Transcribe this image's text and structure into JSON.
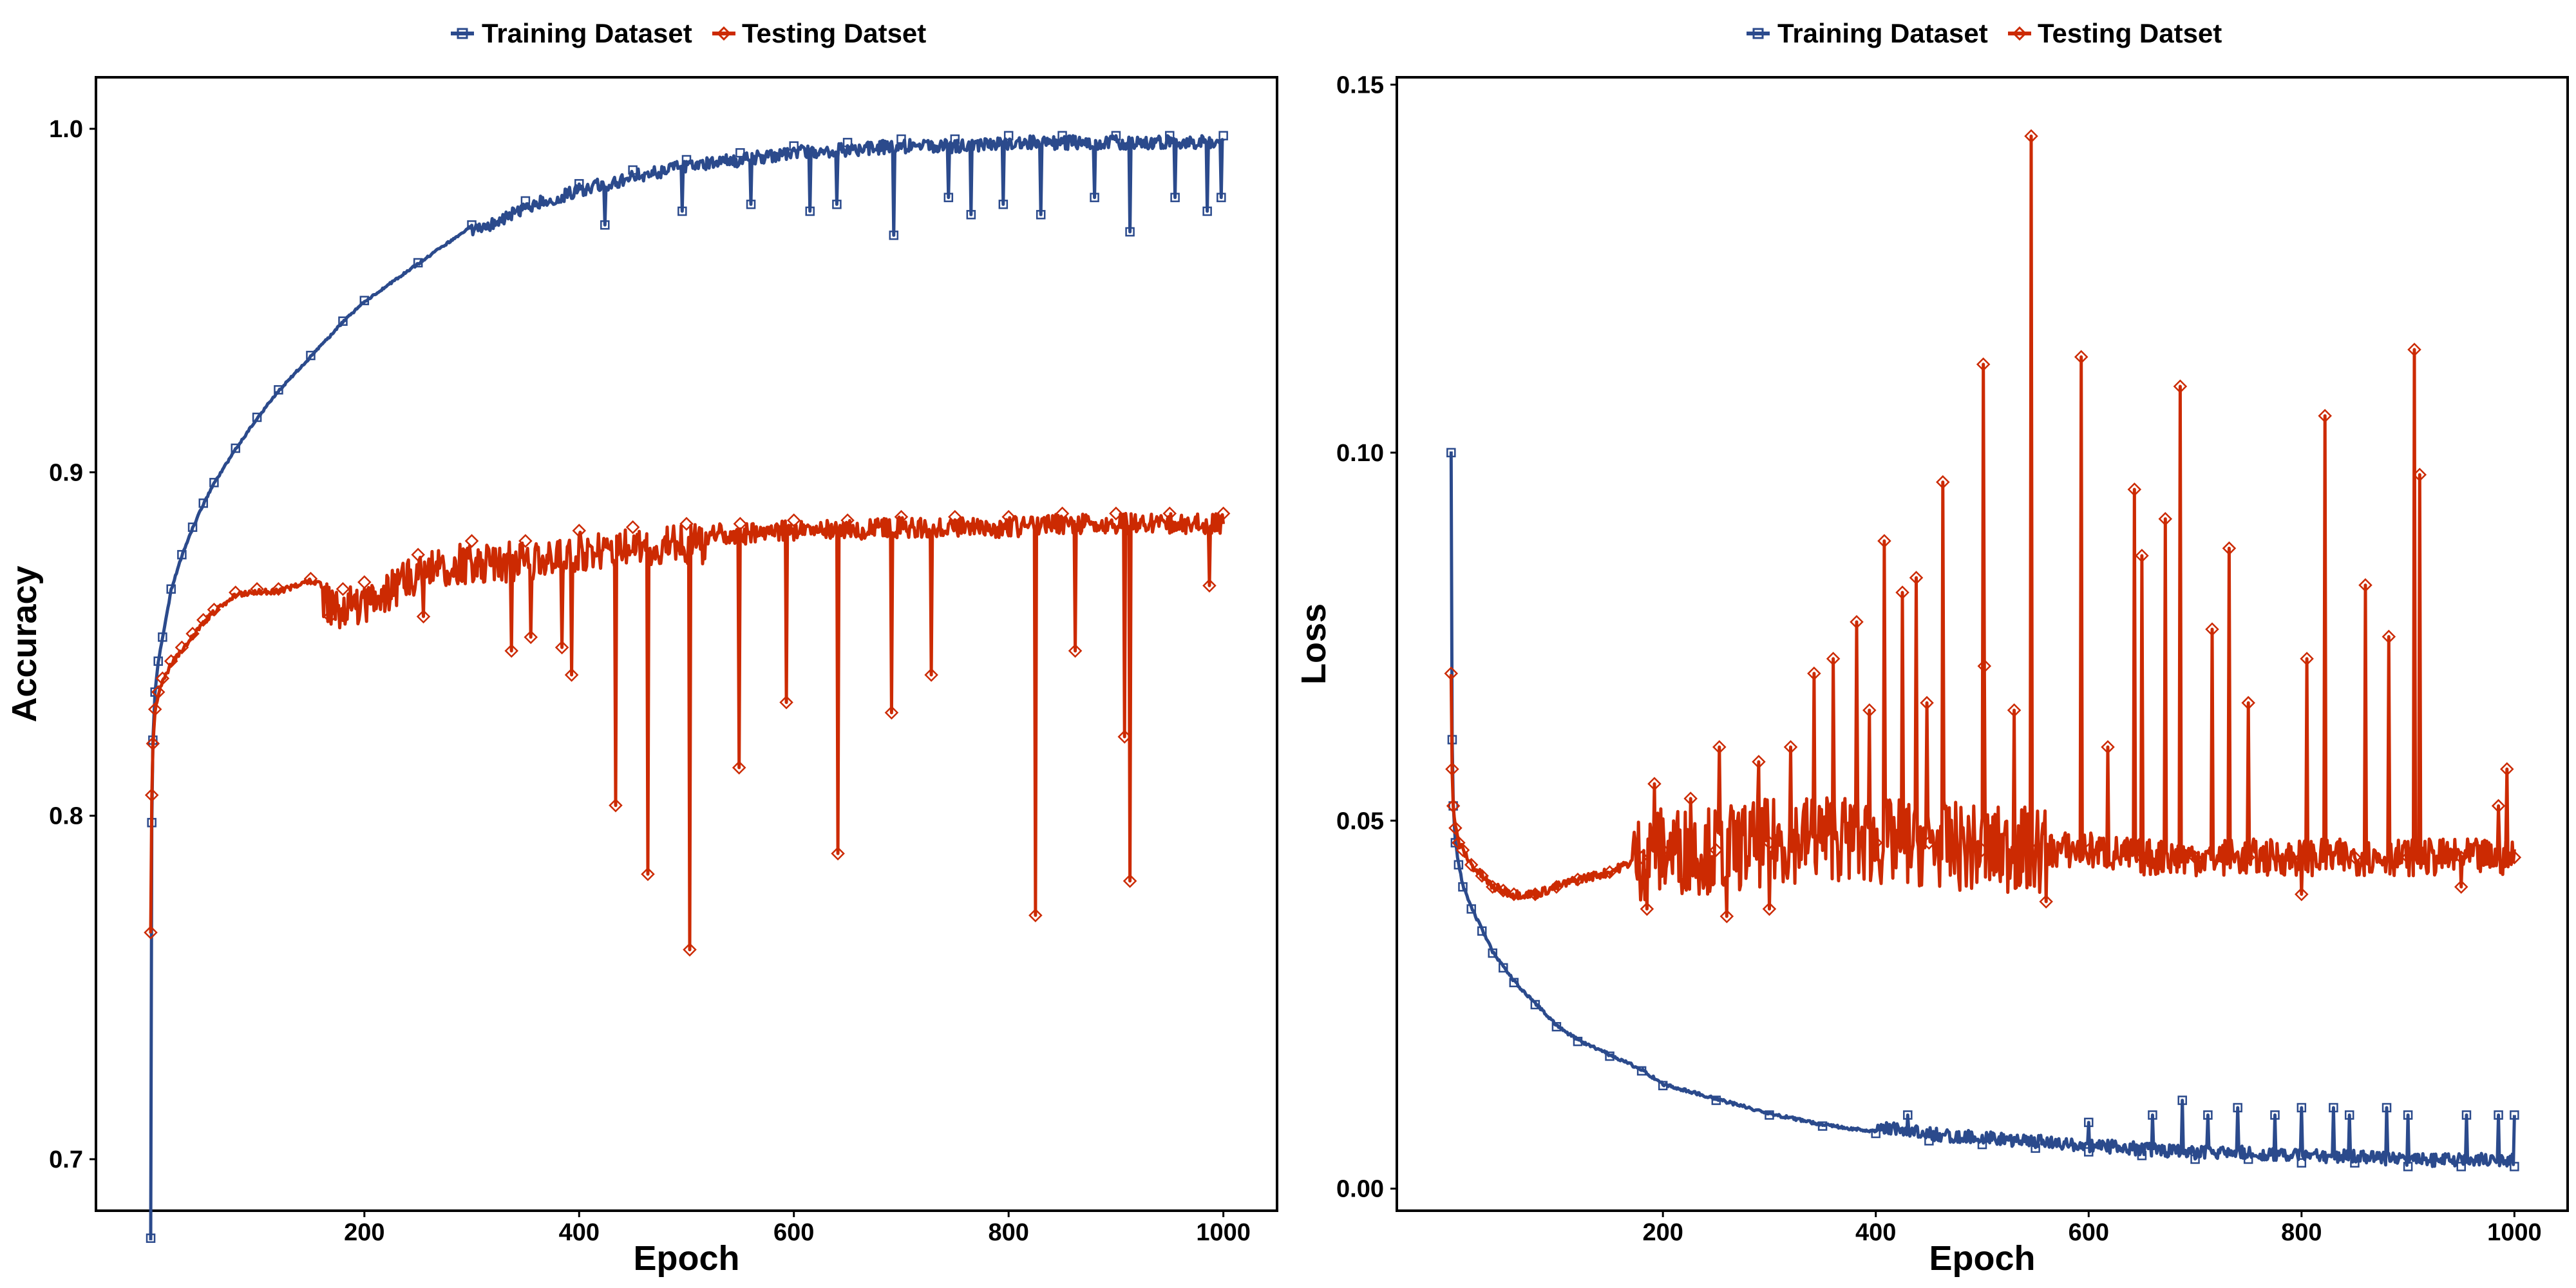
{
  "colors": {
    "training": "#2b4a8c",
    "testing": "#cc2a02"
  },
  "chart_data": [
    {
      "type": "line",
      "xlabel": "Epoch",
      "ylabel": "Accuracy",
      "xlim": [
        -50,
        1050
      ],
      "ylim": [
        0.685,
        1.015
      ],
      "x_ticks": [
        200,
        400,
        600,
        800,
        1000
      ],
      "y_ticks": [
        0.7,
        0.8,
        0.9,
        1.0
      ],
      "y_tick_labels": [
        "0.7",
        "0.8",
        "0.9",
        "1.0"
      ],
      "legend": [
        "Training Dataset",
        "Testing Datset"
      ],
      "legend_position": "top",
      "grid": false,
      "series": [
        {
          "name": "Training Dataset",
          "color": "#2b4a8c",
          "marker": "square",
          "x": [
            1,
            2,
            3,
            5,
            8,
            12,
            20,
            30,
            40,
            50,
            60,
            80,
            100,
            120,
            150,
            180,
            200,
            250,
            300,
            350,
            400,
            450,
            500,
            550,
            600,
            650,
            700,
            750,
            800,
            850,
            900,
            950,
            1000
          ],
          "values": [
            0.677,
            0.798,
            0.822,
            0.836,
            0.845,
            0.852,
            0.866,
            0.876,
            0.884,
            0.891,
            0.897,
            0.907,
            0.916,
            0.924,
            0.934,
            0.944,
            0.95,
            0.961,
            0.972,
            0.979,
            0.984,
            0.988,
            0.991,
            0.993,
            0.995,
            0.996,
            0.997,
            0.997,
            0.998,
            0.998,
            0.998,
            0.998,
            0.998
          ],
          "dips": [
            [
              424,
              0.972
            ],
            [
              496,
              0.976
            ],
            [
              560,
              0.978
            ],
            [
              615,
              0.976
            ],
            [
              640,
              0.978
            ],
            [
              693,
              0.969
            ],
            [
              744,
              0.98
            ],
            [
              765,
              0.975
            ],
            [
              795,
              0.978
            ],
            [
              830,
              0.975
            ],
            [
              880,
              0.98
            ],
            [
              913,
              0.97
            ],
            [
              955,
              0.98
            ],
            [
              985,
              0.976
            ],
            [
              998,
              0.98
            ]
          ]
        },
        {
          "name": "Testing Datset",
          "color": "#cc2a02",
          "marker": "diamond",
          "x": [
            1,
            2,
            3,
            5,
            8,
            12,
            20,
            30,
            40,
            50,
            60,
            80,
            100,
            120,
            150,
            180,
            200,
            250,
            300,
            350,
            400,
            450,
            500,
            550,
            600,
            650,
            700,
            750,
            800,
            850,
            900,
            950,
            1000
          ],
          "values": [
            0.766,
            0.806,
            0.821,
            0.831,
            0.836,
            0.84,
            0.845,
            0.849,
            0.853,
            0.857,
            0.86,
            0.865,
            0.866,
            0.866,
            0.869,
            0.866,
            0.868,
            0.876,
            0.88,
            0.88,
            0.883,
            0.884,
            0.885,
            0.885,
            0.886,
            0.886,
            0.887,
            0.887,
            0.887,
            0.888,
            0.888,
            0.888,
            0.888
          ],
          "dips": [
            [
              337,
              0.848
            ],
            [
              355,
              0.852
            ],
            [
              384,
              0.849
            ],
            [
              393,
              0.841
            ],
            [
              434,
              0.803
            ],
            [
              464,
              0.783
            ],
            [
              503,
              0.761
            ],
            [
              549,
              0.814
            ],
            [
              593,
              0.833
            ],
            [
              641,
              0.789
            ],
            [
              691,
              0.83
            ],
            [
              728,
              0.841
            ],
            [
              825,
              0.771
            ],
            [
              862,
              0.848
            ],
            [
              908,
              0.823
            ],
            [
              913,
              0.781
            ],
            [
              987,
              0.867
            ],
            [
              168,
              0.858
            ],
            [
              255,
              0.858
            ]
          ]
        }
      ]
    },
    {
      "type": "line",
      "xlabel": "Epoch",
      "ylabel": "Loss",
      "xlim": [
        -50,
        1050
      ],
      "ylim": [
        -0.003,
        0.151
      ],
      "x_ticks": [
        200,
        400,
        600,
        800,
        1000
      ],
      "y_ticks": [
        0.0,
        0.05,
        0.1,
        0.15
      ],
      "y_tick_labels": [
        "0.00",
        "0.05",
        "0.10",
        "0.15"
      ],
      "legend": [
        "Training Dataset",
        "Testing Datset"
      ],
      "legend_position": "top",
      "grid": false,
      "series": [
        {
          "name": "Training Dataset",
          "color": "#2b4a8c",
          "marker": "square",
          "x": [
            1,
            2,
            3,
            5,
            8,
            12,
            20,
            30,
            40,
            50,
            60,
            80,
            100,
            120,
            150,
            180,
            200,
            250,
            300,
            350,
            400,
            450,
            500,
            550,
            600,
            650,
            700,
            750,
            800,
            850,
            900,
            950,
            1000
          ],
          "values": [
            0.1,
            0.061,
            0.052,
            0.047,
            0.044,
            0.041,
            0.038,
            0.035,
            0.032,
            0.03,
            0.028,
            0.025,
            0.022,
            0.02,
            0.018,
            0.016,
            0.014,
            0.012,
            0.01,
            0.0085,
            0.0075,
            0.0065,
            0.006,
            0.0055,
            0.005,
            0.0045,
            0.004,
            0.004,
            0.0035,
            0.0035,
            0.003,
            0.003,
            0.003
          ],
          "spikes": [
            [
              430,
              0.01
            ],
            [
              600,
              0.009
            ],
            [
              660,
              0.01
            ],
            [
              688,
              0.012
            ],
            [
              712,
              0.01
            ],
            [
              740,
              0.011
            ],
            [
              775,
              0.01
            ],
            [
              800,
              0.011
            ],
            [
              830,
              0.011
            ],
            [
              845,
              0.01
            ],
            [
              880,
              0.011
            ],
            [
              900,
              0.01
            ],
            [
              955,
              0.01
            ],
            [
              985,
              0.01
            ],
            [
              1000,
              0.01
            ]
          ]
        },
        {
          "name": "Testing Datset",
          "color": "#cc2a02",
          "marker": "diamond",
          "x": [
            1,
            2,
            3,
            5,
            8,
            12,
            20,
            30,
            40,
            50,
            60,
            80,
            100,
            120,
            150,
            180,
            200,
            250,
            300,
            350,
            400,
            450,
            500,
            550,
            600,
            650,
            700,
            750,
            800,
            850,
            900,
            950,
            1000
          ],
          "values": [
            0.07,
            0.057,
            0.052,
            0.049,
            0.047,
            0.046,
            0.044,
            0.0425,
            0.041,
            0.0405,
            0.04,
            0.04,
            0.041,
            0.042,
            0.043,
            0.045,
            0.046,
            0.046,
            0.047,
            0.048,
            0.047,
            0.047,
            0.046,
            0.046,
            0.046,
            0.045,
            0.045,
            0.045,
            0.045,
            0.045,
            0.045,
            0.045,
            0.045
          ],
          "spikes": [
            [
              192,
              0.055
            ],
            [
              226,
              0.053
            ],
            [
              253,
              0.06
            ],
            [
              290,
              0.058
            ],
            [
              320,
              0.06
            ],
            [
              342,
              0.07
            ],
            [
              360,
              0.072
            ],
            [
              382,
              0.077
            ],
            [
              394,
              0.065
            ],
            [
              408,
              0.088
            ],
            [
              425,
              0.081
            ],
            [
              438,
              0.083
            ],
            [
              448,
              0.066
            ],
            [
              463,
              0.096
            ],
            [
              501,
              0.112
            ],
            [
              502,
              0.071
            ],
            [
              530,
              0.065
            ],
            [
              546,
              0.143
            ],
            [
              593,
              0.113
            ],
            [
              618,
              0.06
            ],
            [
              643,
              0.095
            ],
            [
              650,
              0.086
            ],
            [
              672,
              0.091
            ],
            [
              686,
              0.109
            ],
            [
              716,
              0.076
            ],
            [
              732,
              0.087
            ],
            [
              750,
              0.066
            ],
            [
              805,
              0.072
            ],
            [
              822,
              0.105
            ],
            [
              860,
              0.082
            ],
            [
              882,
              0.075
            ],
            [
              906,
              0.114
            ],
            [
              911,
              0.097
            ],
            [
              985,
              0.052
            ],
            [
              993,
              0.057
            ],
            [
              260,
              0.037
            ],
            [
              300,
              0.038
            ],
            [
              185,
              0.038
            ],
            [
              560,
              0.039
            ],
            [
              800,
              0.04
            ],
            [
              950,
              0.041
            ]
          ]
        }
      ]
    }
  ]
}
